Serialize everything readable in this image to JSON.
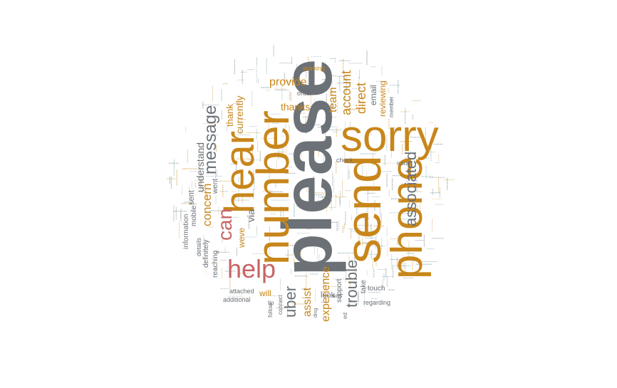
{
  "colors": {
    "gray": "#6b7176",
    "orange": "#c8861a",
    "red": "#c86565",
    "teal": "#5a8a8e"
  },
  "words": [
    {
      "id": "please",
      "text": "please",
      "color": "gray"
    },
    {
      "id": "send",
      "text": "send",
      "color": "orange"
    },
    {
      "id": "phone",
      "text": "phone",
      "color": "orange"
    },
    {
      "id": "sorry",
      "text": "sorry",
      "color": "orange"
    },
    {
      "id": "number",
      "text": "number",
      "color": "orange"
    },
    {
      "id": "hear",
      "text": "hear",
      "color": "orange"
    },
    {
      "id": "help",
      "text": "help",
      "color": "red"
    },
    {
      "id": "can",
      "text": "can",
      "color": "red"
    },
    {
      "id": "message",
      "text": "message",
      "color": "gray"
    },
    {
      "id": "associated",
      "text": "associated",
      "color": "gray"
    },
    {
      "id": "trouble",
      "text": "trouble",
      "color": "gray"
    },
    {
      "id": "uber",
      "text": "uber",
      "color": "gray"
    },
    {
      "id": "account",
      "text": "account",
      "color": "orange"
    },
    {
      "id": "direct",
      "text": "direct",
      "color": "orange"
    },
    {
      "id": "provide",
      "text": "provide",
      "color": "orange"
    },
    {
      "id": "team",
      "text": "team",
      "color": "orange"
    },
    {
      "id": "thanks",
      "text": "thanks",
      "color": "orange"
    },
    {
      "id": "assist",
      "text": "assist",
      "color": "orange"
    },
    {
      "id": "experience",
      "text": "experience",
      "color": "orange"
    },
    {
      "id": "concern",
      "text": "concern",
      "color": "orange"
    },
    {
      "id": "understand",
      "text": "understand",
      "color": "gray"
    },
    {
      "id": "currently",
      "text": "currently",
      "color": "orange"
    },
    {
      "id": "thank",
      "text": "thank",
      "color": "orange"
    },
    {
      "id": "reviewing",
      "text": "reviewing",
      "color": "orange"
    },
    {
      "id": "email",
      "text": "email",
      "color": "gray"
    },
    {
      "id": "via",
      "text": "via",
      "color": "gray"
    },
    {
      "id": "weve",
      "text": "weve",
      "color": "orange"
    },
    {
      "id": "sent",
      "text": "sent",
      "color": "gray"
    },
    {
      "id": "went",
      "text": "went",
      "color": "gray"
    },
    {
      "id": "reaching",
      "text": "reaching",
      "color": "gray"
    },
    {
      "id": "mobile",
      "text": "mobile",
      "color": "gray"
    },
    {
      "id": "information",
      "text": "information",
      "color": "gray"
    },
    {
      "id": "definitely",
      "text": "definitely",
      "color": "gray"
    },
    {
      "id": "details",
      "text": "details",
      "color": "gray"
    },
    {
      "id": "attached",
      "text": "attached",
      "color": "gray"
    },
    {
      "id": "additional",
      "text": "additional",
      "color": "gray"
    },
    {
      "id": "will",
      "text": "will",
      "color": "orange"
    },
    {
      "id": "support",
      "text": "support",
      "color": "gray"
    },
    {
      "id": "look",
      "text": "look",
      "color": "gray"
    },
    {
      "id": "take",
      "text": "take",
      "color": "gray"
    },
    {
      "id": "touch",
      "text": "touch",
      "color": "gray"
    },
    {
      "id": "regarding",
      "text": "regarding",
      "color": "gray"
    },
    {
      "id": "check",
      "text": "check",
      "color": "gray"
    },
    {
      "id": "order",
      "text": "order",
      "color": "gray"
    },
    {
      "id": "working",
      "text": "working",
      "color": "orange"
    },
    {
      "id": "member",
      "text": "member",
      "color": "gray"
    },
    {
      "id": "issue",
      "text": "issue",
      "color": "gray"
    },
    {
      "id": "tip",
      "text": "tip",
      "color": "gray"
    },
    {
      "id": "follow",
      "text": "follow",
      "color": "gray"
    },
    {
      "id": "connect",
      "text": "connect",
      "color": "gray"
    },
    {
      "id": "ed",
      "text": "ed",
      "color": "gray"
    },
    {
      "id": "ding",
      "text": "ding",
      "color": "gray"
    },
    {
      "id": "was",
      "text": "was",
      "color": "gray"
    }
  ]
}
